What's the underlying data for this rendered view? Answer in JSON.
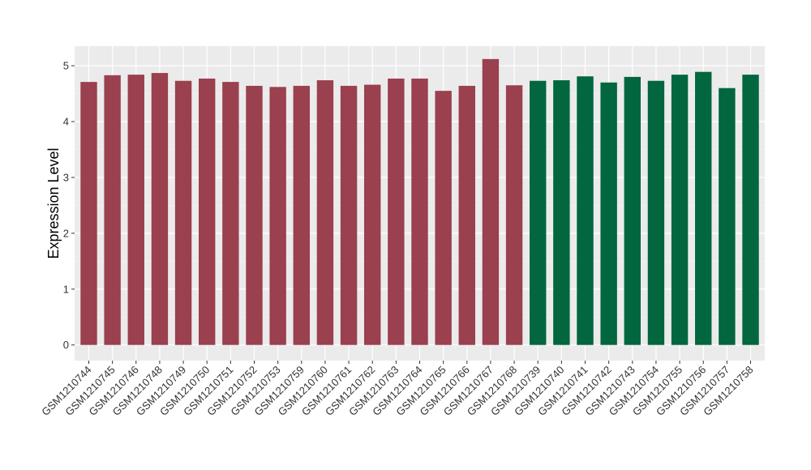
{
  "chart_data": {
    "type": "bar",
    "title": "",
    "xlabel": "",
    "ylabel": "Expression Level",
    "ylim": [
      -0.28,
      5.35
    ],
    "yticks": [
      0,
      1,
      2,
      3,
      4,
      5
    ],
    "grid": true,
    "background": "#ebebeb",
    "categories": [
      "GSM1210744",
      "GSM1210745",
      "GSM1210746",
      "GSM1210748",
      "GSM1210749",
      "GSM1210750",
      "GSM1210751",
      "GSM1210752",
      "GSM1210753",
      "GSM1210759",
      "GSM1210760",
      "GSM1210761",
      "GSM1210762",
      "GSM1210763",
      "GSM1210764",
      "GSM1210765",
      "GSM1210766",
      "GSM1210767",
      "GSM1210768",
      "GSM1210739",
      "GSM1210740",
      "GSM1210741",
      "GSM1210742",
      "GSM1210743",
      "GSM1210754",
      "GSM1210755",
      "GSM1210756",
      "GSM1210757",
      "GSM1210758"
    ],
    "values": [
      4.71,
      4.83,
      4.84,
      4.87,
      4.73,
      4.77,
      4.71,
      4.64,
      4.62,
      4.64,
      4.74,
      4.64,
      4.66,
      4.77,
      4.77,
      4.55,
      4.64,
      5.12,
      4.65,
      4.73,
      4.74,
      4.81,
      4.7,
      4.8,
      4.73,
      4.84,
      4.89,
      4.6,
      4.84
    ],
    "groups": [
      0,
      0,
      0,
      0,
      0,
      0,
      0,
      0,
      0,
      0,
      0,
      0,
      0,
      0,
      0,
      0,
      0,
      0,
      0,
      1,
      1,
      1,
      1,
      1,
      1,
      1,
      1,
      1,
      1
    ],
    "group_colors": [
      "#9a404f",
      "#02663f"
    ]
  }
}
